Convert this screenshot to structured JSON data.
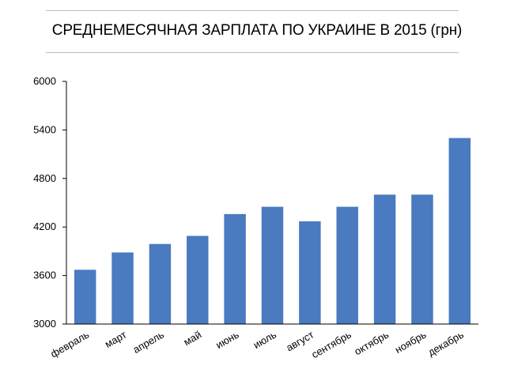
{
  "chart_data": {
    "type": "bar",
    "title": "СРЕДНЕМЕСЯЧНАЯ ЗАРПЛАТА ПО УКРАИНЕ В 2015 (грн)",
    "categories": [
      "февраль",
      "март",
      "апрель",
      "май",
      "июнь",
      "июль",
      "август",
      "сентябрь",
      "октябрь",
      "ноябрь",
      "декабрь"
    ],
    "values": [
      3671,
      3885,
      3990,
      4090,
      4360,
      4450,
      4270,
      4450,
      4600,
      4600,
      5300
    ],
    "ylim": [
      3000,
      6000
    ],
    "yticks": [
      3000,
      3600,
      4200,
      4800,
      5400,
      6000
    ],
    "xlabel": "",
    "ylabel": "",
    "grid": false,
    "bar_color": "#4a7ac0"
  }
}
